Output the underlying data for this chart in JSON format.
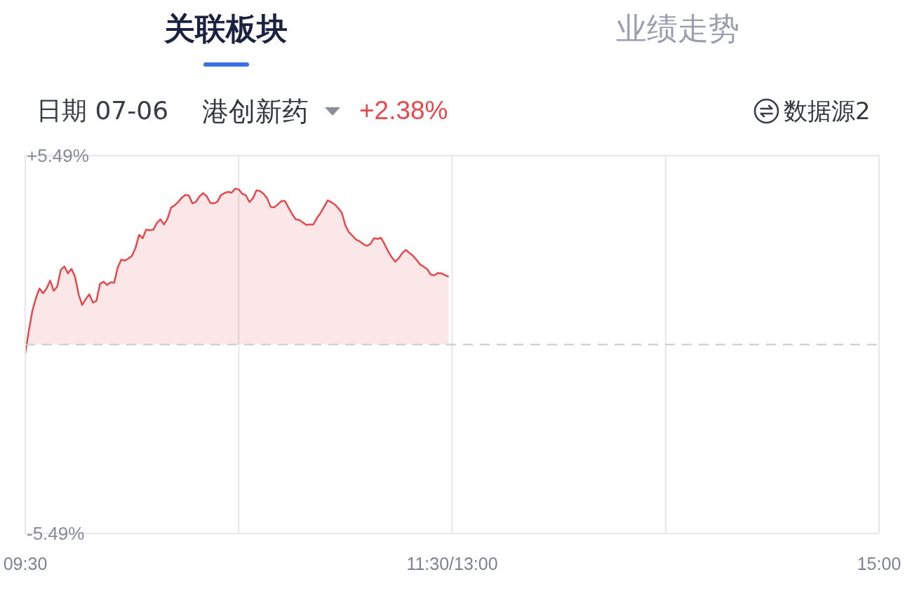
{
  "chart_data": {
    "type": "area",
    "title": "港创新药",
    "subtitle": "日期 07-06",
    "annotations": [
      "关联板块",
      "业绩走势",
      "+2.38%",
      "数据源2"
    ],
    "categories": [
      "09:30",
      null,
      null,
      null,
      null,
      null,
      null,
      null,
      null,
      null,
      null,
      null,
      null,
      null,
      null,
      null,
      null,
      null,
      null,
      null,
      null,
      null,
      null,
      null,
      null,
      null,
      null,
      null,
      null,
      null,
      null,
      null,
      null,
      null,
      null,
      null,
      null,
      null,
      null,
      null,
      null,
      null,
      null,
      null,
      null,
      null,
      null,
      null,
      null,
      null,
      null,
      null,
      null,
      null,
      null,
      null,
      null,
      null,
      null,
      null,
      null,
      null,
      null,
      null,
      null,
      null,
      null,
      null,
      null,
      null,
      null,
      null,
      null,
      null,
      null,
      null,
      null,
      null,
      null,
      null,
      null,
      null,
      null,
      null,
      null,
      null,
      null,
      null,
      null,
      null,
      null,
      null,
      null,
      null,
      null,
      null,
      null,
      null,
      null,
      null,
      null,
      null,
      null,
      null,
      null,
      null,
      null,
      null,
      null,
      null,
      null,
      null,
      null,
      null,
      null,
      null,
      null,
      null,
      null,
      null,
      "11:30/13:00",
      null,
      null,
      null,
      null,
      null,
      null,
      null,
      null,
      null,
      null,
      null,
      null,
      null,
      null,
      null,
      null,
      null,
      null,
      null,
      null,
      null,
      null,
      null,
      null,
      null,
      null,
      null,
      null,
      null,
      null,
      null,
      null,
      null,
      null,
      null,
      null,
      null,
      null,
      null,
      null,
      null,
      null,
      null,
      null,
      null,
      null,
      null,
      null,
      null,
      null,
      null,
      null,
      null,
      null,
      null,
      null,
      null,
      null,
      null,
      null,
      null,
      null,
      null,
      null,
      null,
      null,
      null,
      null,
      null,
      null,
      null,
      null,
      null,
      null,
      null,
      null,
      null,
      null,
      null,
      null,
      null,
      null,
      null,
      null,
      null,
      null,
      null,
      null,
      null,
      null,
      null,
      null,
      null,
      null,
      null,
      null,
      null,
      null,
      null,
      null,
      null,
      null,
      null,
      null,
      null,
      null,
      null,
      null,
      null,
      null,
      null,
      null,
      null,
      null,
      null,
      null,
      null,
      null,
      null,
      "15:00"
    ],
    "values": [
      -0.26,
      0.4,
      0.98,
      1.35,
      1.63,
      1.49,
      1.63,
      1.86,
      1.56,
      1.69,
      2.17,
      2.27,
      2.07,
      2.2,
      1.97,
      1.46,
      1.15,
      1.32,
      1.46,
      1.22,
      1.27,
      1.76,
      1.83,
      1.73,
      1.81,
      1.8,
      2.24,
      2.47,
      2.44,
      2.5,
      2.58,
      2.81,
      3.19,
      3.09,
      3.34,
      3.32,
      3.34,
      3.53,
      3.64,
      3.49,
      3.66,
      3.98,
      4.05,
      4.14,
      4.27,
      4.35,
      4.33,
      4.1,
      4.15,
      4.31,
      4.4,
      4.31,
      4.12,
      4.1,
      4.15,
      4.34,
      4.4,
      4.44,
      4.41,
      4.53,
      4.51,
      4.38,
      4.34,
      4.14,
      4.25,
      4.48,
      4.46,
      4.38,
      4.25,
      4.0,
      3.99,
      4.07,
      4.17,
      4.17,
      3.98,
      3.8,
      3.64,
      3.62,
      3.55,
      3.48,
      3.49,
      3.49,
      3.68,
      3.82,
      4.0,
      4.19,
      4.14,
      4.07,
      3.96,
      3.83,
      3.46,
      3.26,
      3.16,
      3.05,
      3.0,
      2.92,
      2.87,
      2.92,
      3.09,
      3.07,
      3.1,
      2.92,
      2.71,
      2.54,
      2.41,
      2.51,
      2.66,
      2.75,
      2.66,
      2.58,
      2.46,
      2.33,
      2.26,
      2.19,
      2.03,
      2.01,
      2.08,
      2.07,
      2.02,
      1.97,
      null,
      null,
      null,
      null,
      null,
      null,
      null,
      null,
      null,
      null,
      null,
      null,
      null,
      null,
      null,
      null,
      null,
      null,
      null,
      null,
      null,
      null,
      null,
      null,
      null,
      null,
      null,
      null,
      null,
      null,
      null,
      null,
      null,
      null,
      null,
      null,
      null,
      null,
      null,
      null,
      null,
      null,
      null,
      null,
      null,
      null,
      null,
      null,
      null,
      null,
      null,
      null,
      null,
      null,
      null,
      null,
      null,
      null,
      null,
      null,
      null,
      null,
      null,
      null,
      null,
      null,
      null,
      null,
      null,
      null,
      null,
      null,
      null,
      null,
      null,
      null,
      null,
      null,
      null,
      null,
      null,
      null,
      null,
      null,
      null,
      null,
      null,
      null,
      null,
      null,
      null,
      null,
      null,
      null,
      null,
      null,
      null,
      null,
      null,
      null,
      null,
      null,
      null,
      null,
      null,
      null,
      null,
      null,
      null,
      null,
      null,
      null,
      null,
      null,
      null,
      null,
      null,
      null,
      null,
      null,
      null
    ],
    "color": "#e5484d",
    "ylim": [
      -5.49,
      5.49
    ],
    "yticks": [
      {
        "value": -5.49,
        "label": "-5.49%"
      },
      {
        "value": 5.49,
        "label": "+5.49%"
      }
    ],
    "grid": "x",
    "ref_lines": [
      {
        "axis": "y",
        "value": 0,
        "color": "#c9c9cf",
        "line_style": "dashed"
      }
    ]
  }
}
